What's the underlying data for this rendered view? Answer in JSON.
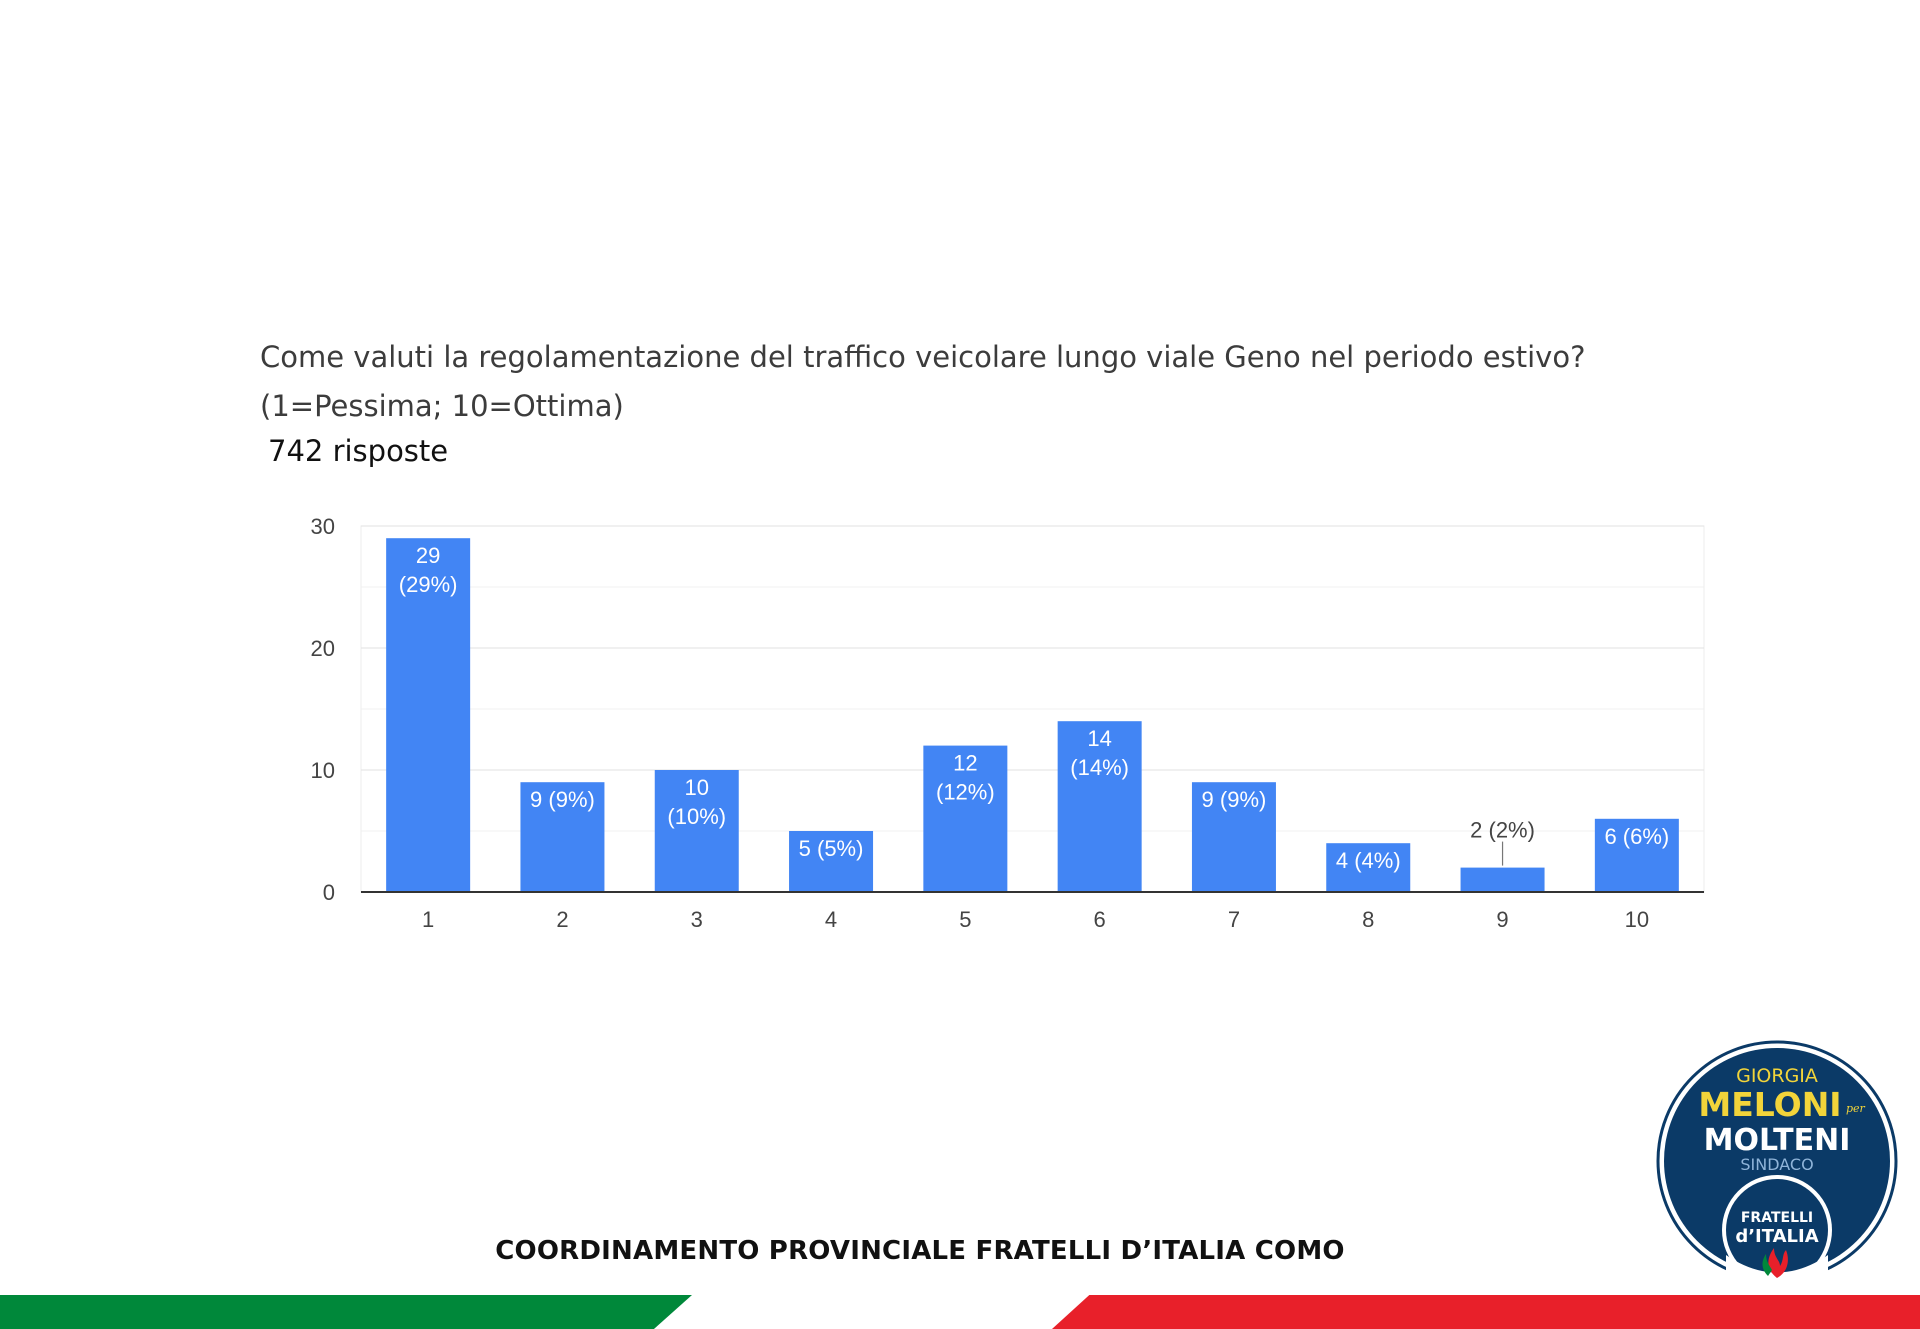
{
  "question": {
    "line1": "Come valuti la regolamentazione del traffico veicolare lungo viale Geno nel periodo estivo?",
    "line2": "(1=Pessima; 10=Ottima)"
  },
  "responses_label": "742 risposte",
  "footer": "COORDINAMENTO PROVINCIALE FRATELLI D’ITALIA COMO",
  "logo": {
    "line1": "GIORGIA",
    "line2": "MELONI",
    "per": "per",
    "line3": "MOLTENI",
    "line4": "SINDACO",
    "line5": "FRATELLI",
    "line6": "d’ITALIA"
  },
  "colors": {
    "bar": "#4285f4",
    "green": "#00883a",
    "red": "#e8202a",
    "logo_navy": "#0b3a67",
    "logo_yellow": "#f2d43a"
  },
  "chart_data": {
    "type": "bar",
    "categories": [
      "1",
      "2",
      "3",
      "4",
      "5",
      "6",
      "7",
      "8",
      "9",
      "10"
    ],
    "values": [
      29,
      9,
      10,
      5,
      12,
      14,
      9,
      4,
      2,
      6
    ],
    "data_labels": [
      "29 (29%)",
      "9 (9%)",
      "10 (10%)",
      "5 (5%)",
      "12 (12%)",
      "14 (14%)",
      "9 (9%)",
      "4 (4%)",
      "2 (2%)",
      "6 (6%)"
    ],
    "yticks": [
      0,
      10,
      20,
      30
    ],
    "ylim": [
      0,
      30
    ],
    "grid": true,
    "legend": "none"
  }
}
